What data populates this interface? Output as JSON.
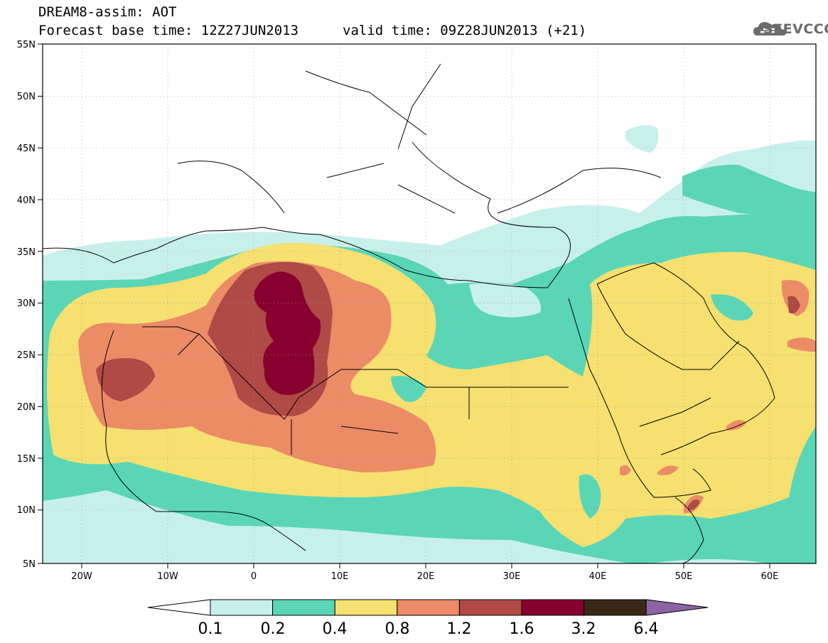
{
  "header": {
    "title": "DREAM8-assim: AOT",
    "base_time": "Forecast base time: 12Z27JUN2013",
    "valid_time": "valid time: 09Z28JUN2013 (+21)"
  },
  "logo": {
    "text": "SEEVCCC",
    "icon": "cloud-icon",
    "color": "#6c6c6c"
  },
  "map": {
    "lat_labels": [
      "55N",
      "50N",
      "45N",
      "40N",
      "35N",
      "30N",
      "25N",
      "20N",
      "15N",
      "10N",
      "5N"
    ],
    "lon_labels": [
      "20W",
      "10W",
      "0",
      "10E",
      "20E",
      "30E",
      "40E",
      "50E",
      "60E"
    ]
  },
  "colorbar": {
    "labels": [
      "0.1",
      "0.2",
      "0.4",
      "0.8",
      "1.2",
      "1.6",
      "3.2",
      "6.4"
    ],
    "colors": [
      "#ffffff",
      "#c8f0ea",
      "#5ad6b7",
      "#f5e070",
      "#eb8c66",
      "#b04a46",
      "#870030",
      "#3b2816",
      "#8c64a6"
    ]
  }
}
